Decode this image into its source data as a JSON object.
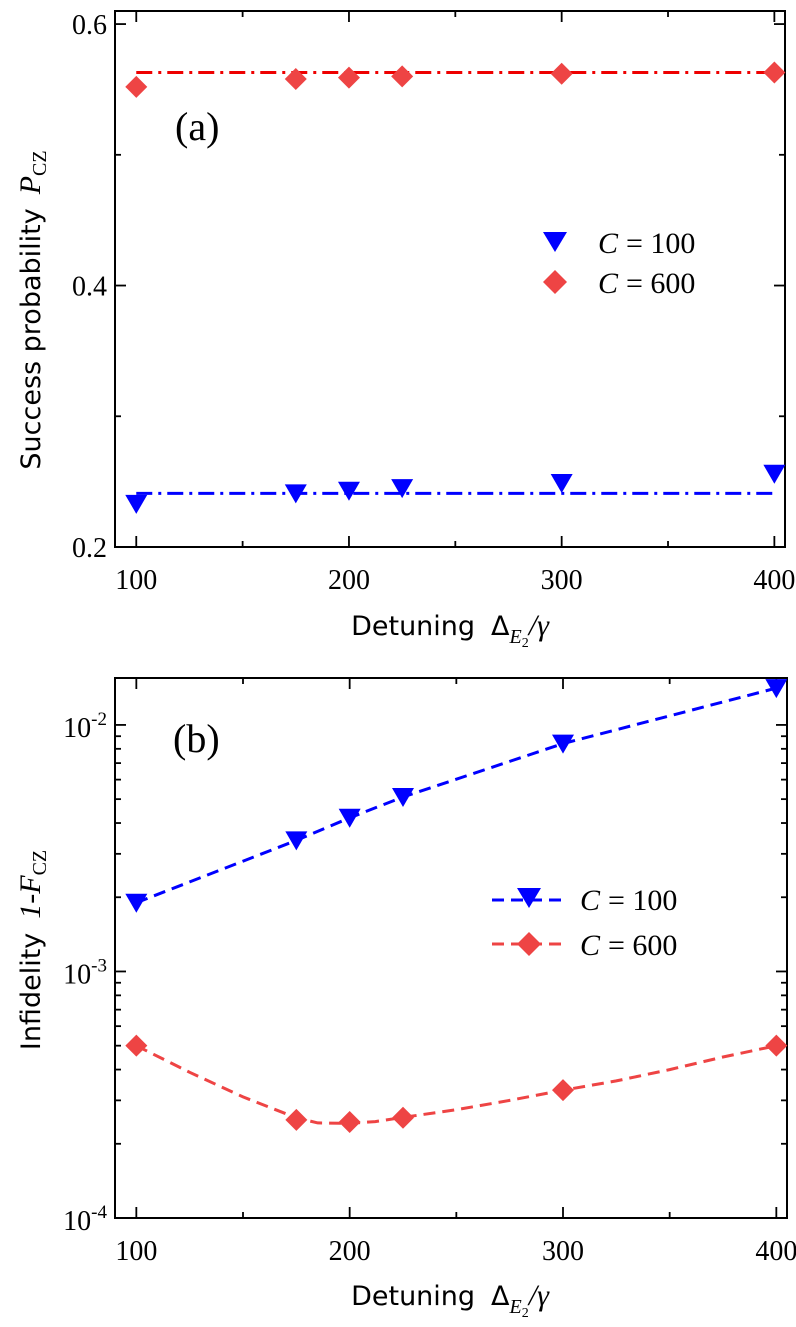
{
  "chart_data": [
    {
      "id": "a",
      "type": "scatter",
      "panel_label": "(a)",
      "ylabel": "Success probability",
      "ylabel_symbol": "P",
      "ylabel_subscript": "CZ",
      "xlabel": "Detuning",
      "xlabel_symbol": "Δ",
      "xlabel_sub": "E",
      "xlabel_subsub": "2",
      "xlabel_suffix": "/γ",
      "yscale": "linear",
      "xlim": [
        90,
        405
      ],
      "ylim": [
        0.2,
        0.61
      ],
      "x_ticks": [
        100,
        200,
        300,
        400
      ],
      "x_tick_labels": [
        "100",
        "200",
        "300",
        "400"
      ],
      "y_ticks": [
        0.2,
        0.4,
        0.6
      ],
      "y_tick_labels": [
        "0.2",
        "0.4",
        "0.6"
      ],
      "legend_position": "center-right",
      "series": [
        {
          "name": "C = 100",
          "legend_symbol": "C",
          "legend_value": "= 100",
          "color": "#0000ff",
          "marker": "triangle-down",
          "x": [
            100,
            175,
            200,
            225,
            300,
            400
          ],
          "values": [
            0.233,
            0.241,
            0.243,
            0.245,
            0.249,
            0.256
          ],
          "fit": {
            "style": "dash-dot",
            "x": [
              100,
              400
            ],
            "values": [
              0.241,
              0.241
            ]
          }
        },
        {
          "name": "C = 600",
          "legend_symbol": "C",
          "legend_value": "= 600",
          "color": "#ee4444",
          "marker": "diamond",
          "x": [
            100,
            175,
            200,
            225,
            300,
            400
          ],
          "values": [
            0.552,
            0.558,
            0.559,
            0.56,
            0.562,
            0.563
          ],
          "fit": {
            "style": "dash-dot",
            "x": [
              100,
              400
            ],
            "values": [
              0.563,
              0.563
            ],
            "color": "#ee0000"
          }
        }
      ]
    },
    {
      "id": "b",
      "type": "line",
      "panel_label": "(b)",
      "ylabel": "Infidelity",
      "ylabel_prefix": "1-",
      "ylabel_symbol": "F",
      "ylabel_subscript": "CZ",
      "xlabel": "Detuning",
      "xlabel_symbol": "Δ",
      "xlabel_sub": "E",
      "xlabel_subsub": "2",
      "xlabel_suffix": "/γ",
      "yscale": "log",
      "xlim": [
        90,
        405
      ],
      "ylim": [
        0.0001,
        0.0155
      ],
      "x_ticks": [
        100,
        200,
        300,
        400
      ],
      "x_tick_labels": [
        "100",
        "200",
        "300",
        "400"
      ],
      "y_ticks": [
        0.0001,
        0.001,
        0.01
      ],
      "y_tick_base": [
        "10",
        "10",
        "10"
      ],
      "y_tick_exp": [
        "-4",
        "-3",
        "-2"
      ],
      "legend_position": "center-right",
      "series": [
        {
          "name": "C = 100",
          "legend_symbol": "C",
          "legend_value": "= 100",
          "color": "#0000ff",
          "marker": "triangle-down",
          "line_style": "dashed",
          "x": [
            100,
            175,
            200,
            225,
            300,
            400
          ],
          "values": [
            0.0019,
            0.0034,
            0.0042,
            0.0051,
            0.0084,
            0.0141
          ]
        },
        {
          "name": "C = 600",
          "legend_symbol": "C",
          "legend_value": "= 600",
          "color": "#ee4444",
          "marker": "diamond",
          "line_style": "dashed",
          "x": [
            100,
            175,
            200,
            225,
            300,
            400
          ],
          "values": [
            0.0005,
            0.00025,
            0.000245,
            0.000255,
            0.00033,
            0.0005
          ],
          "curve_x": [
            100,
            125,
            150,
            175,
            185,
            200,
            212,
            225,
            250,
            275,
            300,
            325,
            350,
            375,
            400
          ],
          "curve_values": [
            0.0005,
            0.00039,
            0.00031,
            0.000255,
            0.000243,
            0.000242,
            0.000246,
            0.000256,
            0.000275,
            0.0003,
            0.00033,
            0.00036,
            0.0004,
            0.00045,
            0.0005
          ]
        }
      ]
    }
  ]
}
